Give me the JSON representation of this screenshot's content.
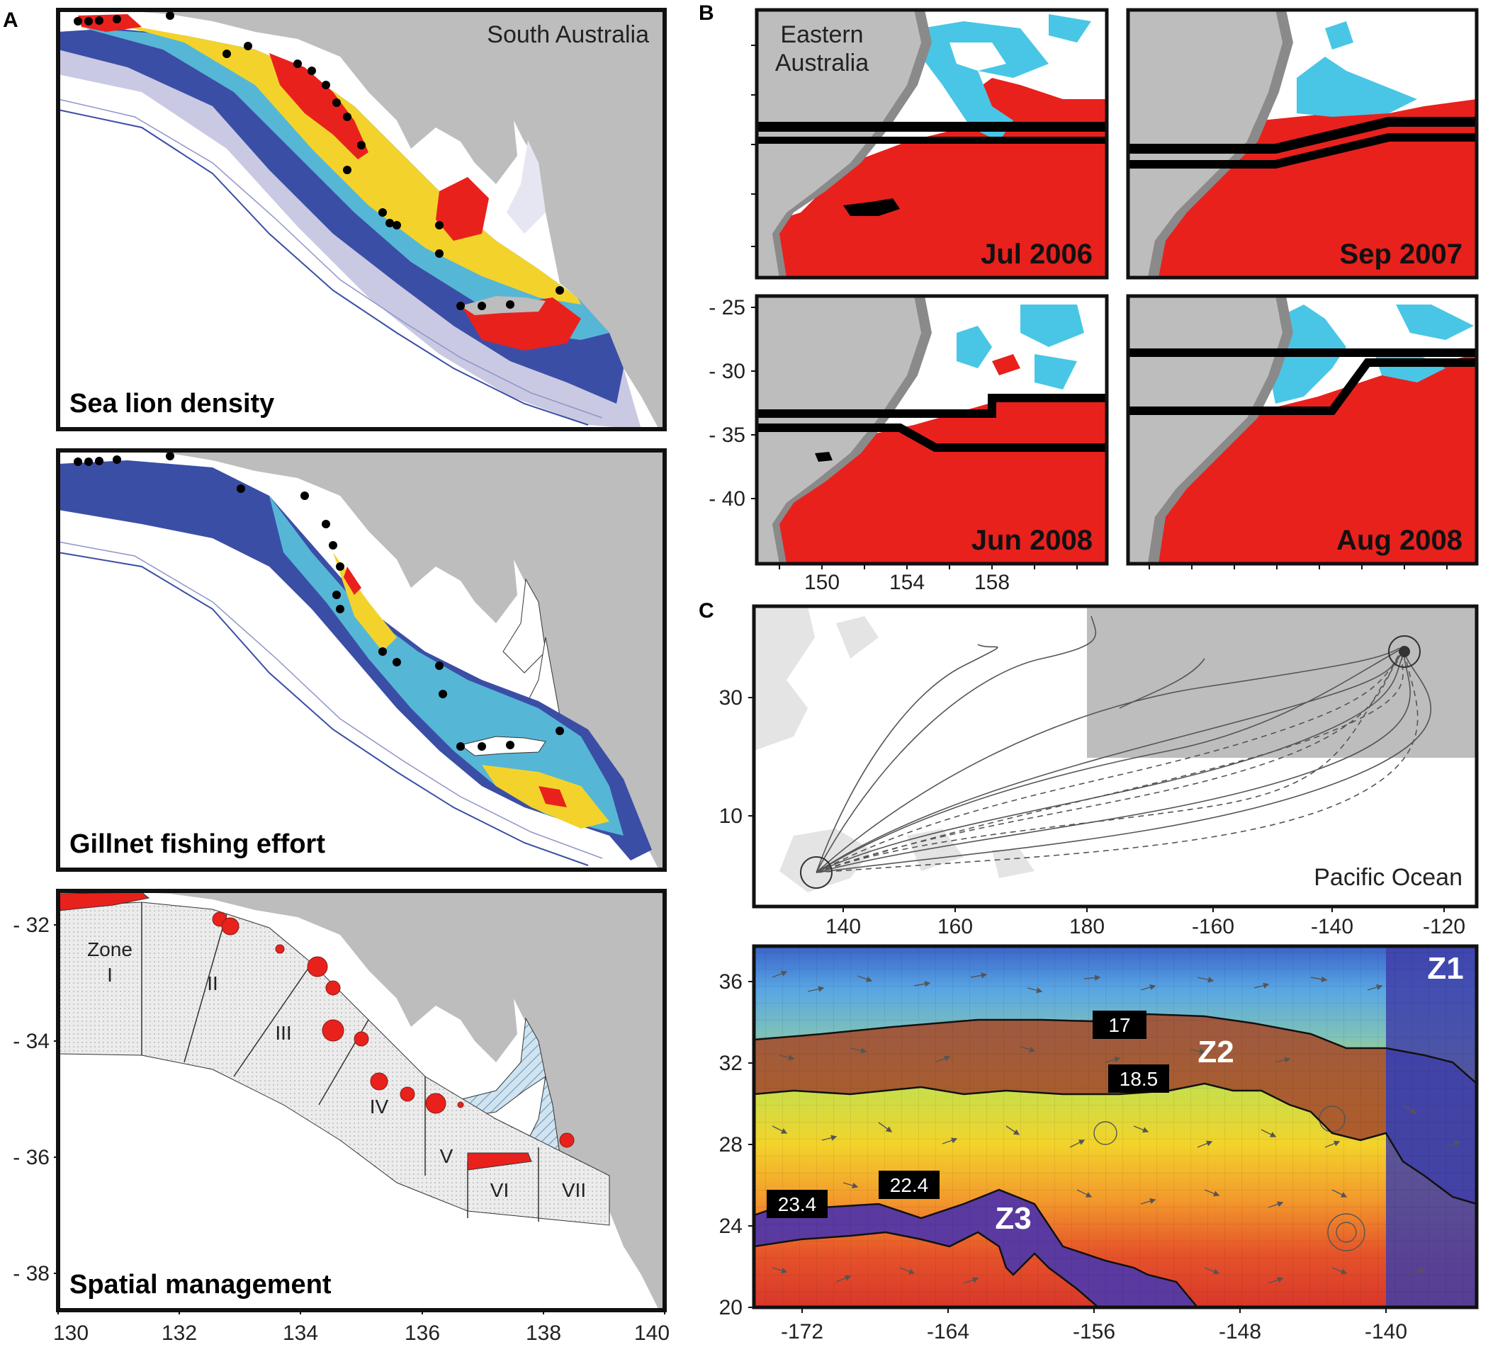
{
  "panel_letters": {
    "a": "A",
    "b": "B",
    "c": "C"
  },
  "panel_a": {
    "region_label": "South Australia",
    "captions": {
      "density": "Sea lion density",
      "effort": "Gillnet fishing effort",
      "management": "Spatial management"
    },
    "zones": {
      "zone_word": "Zone",
      "z1": "I",
      "z2": "II",
      "z3": "III",
      "z4": "IV",
      "z5": "V",
      "z6": "VI",
      "z7": "VII"
    },
    "y_ticks": [
      "- 32",
      "- 34",
      "- 36",
      "- 38"
    ],
    "x_ticks": [
      "130",
      "132",
      "134",
      "136",
      "138",
      "140"
    ]
  },
  "panel_b": {
    "region_label_line1": "Eastern",
    "region_label_line2": "Australia",
    "months": [
      "Jul 2006",
      "Sep 2007",
      "Jun 2008",
      "Aug 2008"
    ],
    "y_ticks": [
      "- 25",
      "- 30",
      "- 35",
      "- 40"
    ],
    "x_ticks": [
      "150",
      "154",
      "158"
    ]
  },
  "panel_c": {
    "ocean_label": "Pacific Ocean",
    "top_y_ticks": [
      "30",
      "10"
    ],
    "top_x_ticks": [
      "140",
      "160",
      "180",
      "-160",
      "-140",
      "-120"
    ],
    "bottom_y_ticks": [
      "36",
      "32",
      "28",
      "24",
      "20"
    ],
    "bottom_x_ticks": [
      "-172",
      "-164",
      "-156",
      "-148",
      "-140"
    ],
    "isotherms": {
      "t17": "17",
      "t18_5": "18.5",
      "t22_4": "22.4",
      "t23_4": "23.4"
    },
    "zones": {
      "z1": "Z1",
      "z2": "Z2",
      "z3": "Z3"
    }
  },
  "colors": {
    "land": "#bdbdbd",
    "hotspot": "#e8211d",
    "secondary": "#49c6e5",
    "deep_ocean": "#3b4ea6",
    "zone_purple": "#5a3aa0"
  }
}
